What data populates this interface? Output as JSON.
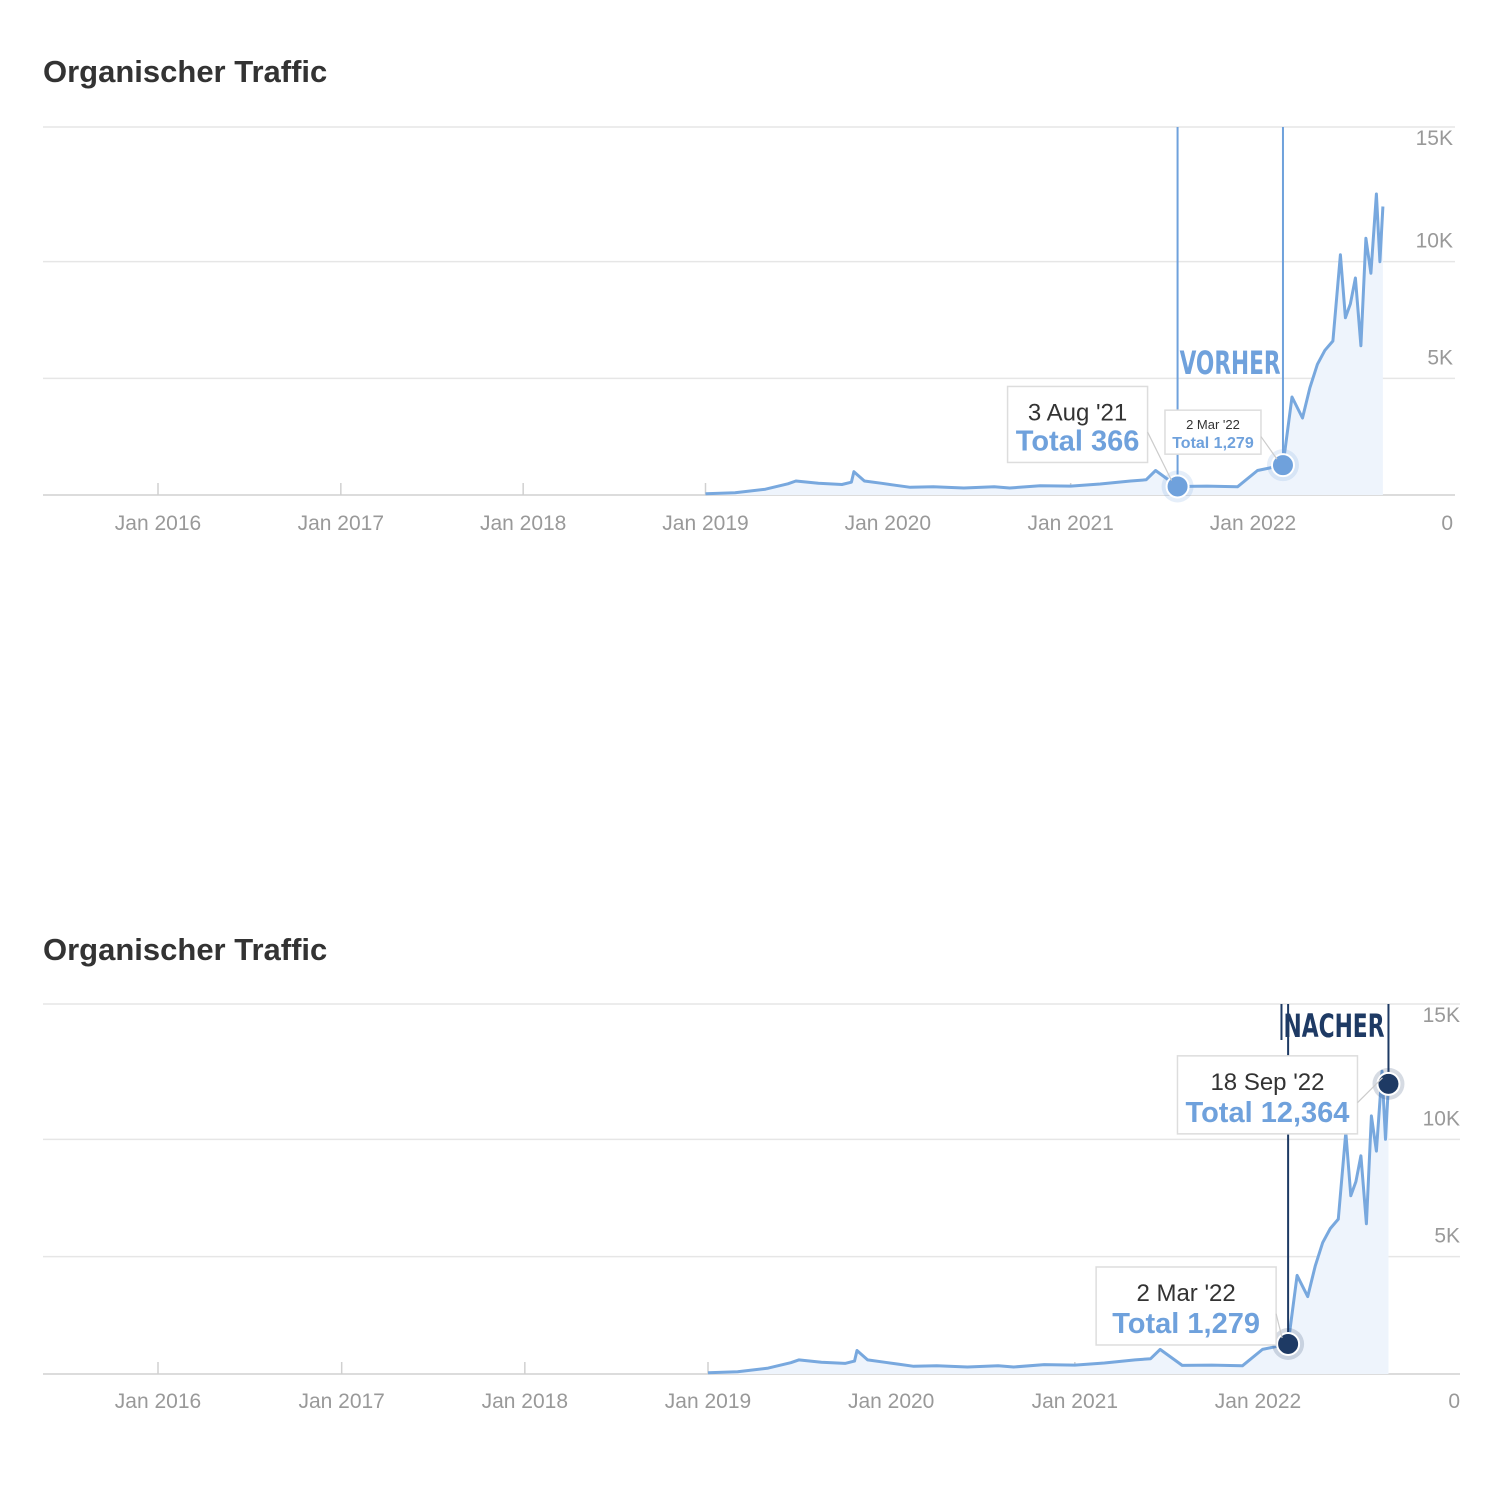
{
  "colors": {
    "series_line": "#78a8de",
    "series_fill": "#eef4fc",
    "marker_vorher": "#6fa1dc",
    "marker_nacher": "#1e3a64",
    "grid": "#e6e6e6",
    "axis_text": "#999999"
  },
  "chart_data": [
    {
      "type": "area",
      "title": "Organischer Traffic",
      "xlabel": "",
      "ylabel": "",
      "x_ticks": [
        "Jan 2016",
        "Jan 2017",
        "Jan 2018",
        "Jan 2019",
        "Jan 2020",
        "Jan 2021",
        "Jan 2022"
      ],
      "y_ticks": [
        "15K",
        "10K",
        "5K",
        "0"
      ],
      "ylim": [
        0,
        15000
      ],
      "grid": true,
      "x": [
        "2019-01-01",
        "2019-03-01",
        "2019-05-01",
        "2019-06-15",
        "2019-07-01",
        "2019-08-15",
        "2019-10-01",
        "2019-10-20",
        "2019-10-25",
        "2019-11-15",
        "2019-12-20",
        "2020-01-15",
        "2020-02-15",
        "2020-04-01",
        "2020-06-01",
        "2020-08-01",
        "2020-09-01",
        "2020-11-01",
        "2021-01-01",
        "2021-03-01",
        "2021-05-01",
        "2021-06-01",
        "2021-06-20",
        "2021-08-03",
        "2021-10-01",
        "2021-12-01",
        "2022-01-10",
        "2022-03-02",
        "2022-03-20",
        "2022-04-10",
        "2022-04-25",
        "2022-05-10",
        "2022-05-25",
        "2022-06-10",
        "2022-06-25",
        "2022-07-05",
        "2022-07-15",
        "2022-07-25",
        "2022-08-05",
        "2022-08-15",
        "2022-08-25",
        "2022-09-05",
        "2022-09-12",
        "2022-09-18"
      ],
      "series": [
        {
          "values": [
            50,
            100,
            250,
            480,
            600,
            500,
            450,
            550,
            1000,
            600,
            500,
            420,
            330,
            350,
            300,
            350,
            300,
            400,
            380,
            470,
            600,
            650,
            1050,
            366,
            380,
            350,
            1050,
            1279,
            4200,
            3300,
            4600,
            5600,
            6200,
            6600,
            10300,
            7600,
            8200,
            9300,
            6400,
            11000,
            9500,
            12900,
            10000,
            12364
          ]
        }
      ],
      "annotations": [
        {
          "id": "vorher",
          "label": "VORHER",
          "x": "2021-08-03",
          "date": "3 Aug '21",
          "total": "Total 366"
        },
        {
          "id": "nacher-mini",
          "x": "2022-03-02",
          "date": "2 Mar '22",
          "total": "Total 1,279"
        }
      ]
    },
    {
      "type": "area",
      "title": "Organischer Traffic",
      "xlabel": "",
      "ylabel": "",
      "x_ticks": [
        "Jan 2016",
        "Jan 2017",
        "Jan 2018",
        "Jan 2019",
        "Jan 2020",
        "Jan 2021",
        "Jan 2022"
      ],
      "y_ticks": [
        "15K",
        "10K",
        "5K",
        "0"
      ],
      "ylim": [
        0,
        15000
      ],
      "grid": true,
      "x": [
        "2019-01-01",
        "2019-03-01",
        "2019-05-01",
        "2019-06-15",
        "2019-07-01",
        "2019-08-15",
        "2019-10-01",
        "2019-10-20",
        "2019-10-25",
        "2019-11-15",
        "2019-12-20",
        "2020-01-15",
        "2020-02-15",
        "2020-04-01",
        "2020-06-01",
        "2020-08-01",
        "2020-09-01",
        "2020-11-01",
        "2021-01-01",
        "2021-03-01",
        "2021-05-01",
        "2021-06-01",
        "2021-06-20",
        "2021-08-03",
        "2021-10-01",
        "2021-12-01",
        "2022-01-10",
        "2022-03-02",
        "2022-03-20",
        "2022-04-10",
        "2022-04-25",
        "2022-05-10",
        "2022-05-25",
        "2022-06-10",
        "2022-06-25",
        "2022-07-05",
        "2022-07-15",
        "2022-07-25",
        "2022-08-05",
        "2022-08-15",
        "2022-08-25",
        "2022-09-05",
        "2022-09-12",
        "2022-09-18"
      ],
      "series": [
        {
          "values": [
            50,
            100,
            250,
            480,
            600,
            500,
            450,
            550,
            1000,
            600,
            500,
            420,
            330,
            350,
            300,
            350,
            300,
            400,
            380,
            470,
            600,
            650,
            1050,
            366,
            380,
            350,
            1050,
            1279,
            4200,
            3300,
            4600,
            5600,
            6200,
            6600,
            10300,
            7600,
            8200,
            9300,
            6400,
            11000,
            9500,
            12900,
            10000,
            12364
          ]
        }
      ],
      "annotations": [
        {
          "id": "nacher-start",
          "x": "2022-03-02",
          "date": "2 Mar '22",
          "total": "Total 1,279"
        },
        {
          "id": "nacher",
          "label": "NACHER",
          "x": "2022-09-18",
          "date": "18 Sep '22",
          "total": "Total 12,364"
        }
      ]
    }
  ]
}
